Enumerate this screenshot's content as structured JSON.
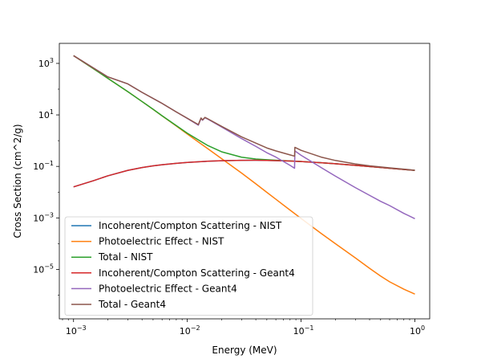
{
  "chart_data": {
    "type": "line",
    "title": "",
    "xlabel": "Energy (MeV)",
    "ylabel": "Cross Section (cm^2/g)",
    "xscale": "log",
    "yscale": "log",
    "xlim": [
      0.00075,
      1.35
    ],
    "ylim": [
      1.2e-07,
      6000
    ],
    "grid": false,
    "legend_position": "lower-left",
    "xticks": [
      0.001,
      0.01,
      0.1,
      1
    ],
    "xtick_labels": [
      {
        "base": "10",
        "exp": "−3"
      },
      {
        "base": "10",
        "exp": "−2"
      },
      {
        "base": "10",
        "exp": "−1"
      },
      {
        "base": "10",
        "exp": "0"
      }
    ],
    "yticks": [
      1e-05,
      0.001,
      0.1,
      10,
      1000
    ],
    "ytick_labels": [
      {
        "base": "10",
        "exp": "−5"
      },
      {
        "base": "10",
        "exp": "−3"
      },
      {
        "base": "10",
        "exp": "−1"
      },
      {
        "base": "10",
        "exp": "1"
      },
      {
        "base": "10",
        "exp": "3"
      }
    ],
    "series": [
      {
        "name": "Incoherent/Compton Scattering - NIST",
        "color": "#1f77b4",
        "x": [
          0.001,
          0.0015,
          0.002,
          0.003,
          0.004,
          0.005,
          0.006,
          0.008,
          0.01,
          0.015,
          0.02,
          0.03,
          0.04,
          0.05,
          0.06,
          0.08,
          0.1,
          0.15,
          0.2,
          0.3,
          0.4,
          0.5,
          0.6,
          0.8,
          1.0
        ],
        "y": [
          0.016,
          0.028,
          0.043,
          0.07,
          0.09,
          0.105,
          0.116,
          0.131,
          0.142,
          0.158,
          0.166,
          0.172,
          0.173,
          0.171,
          0.168,
          0.161,
          0.154,
          0.139,
          0.127,
          0.11,
          0.099,
          0.091,
          0.085,
          0.076,
          0.07
        ]
      },
      {
        "name": "Photoelectric Effect - NIST",
        "color": "#ff7f0e",
        "x": [
          0.001,
          0.0015,
          0.002,
          0.003,
          0.004,
          0.005,
          0.006,
          0.008,
          0.01,
          0.015,
          0.02,
          0.03,
          0.04,
          0.05,
          0.06,
          0.08,
          0.1,
          0.15,
          0.2,
          0.3,
          0.4,
          0.5,
          0.6,
          0.8,
          1.0
        ],
        "y": [
          2000,
          620,
          265,
          80,
          33,
          16.5,
          9.2,
          3.7,
          1.8,
          0.5,
          0.2,
          0.055,
          0.021,
          0.0098,
          0.0053,
          0.002,
          0.00095,
          0.00025,
          0.0001,
          2.8e-05,
          1.1e-05,
          5.5e-06,
          3.3e-06,
          1.7e-06,
          1.1e-06
        ]
      },
      {
        "name": "Total - NIST",
        "color": "#2ca02c",
        "x": [
          0.001,
          0.0015,
          0.002,
          0.003,
          0.004,
          0.005,
          0.006,
          0.008,
          0.01,
          0.015,
          0.02,
          0.03,
          0.04,
          0.05,
          0.06,
          0.08,
          0.1,
          0.15,
          0.2,
          0.3,
          0.4,
          0.5,
          0.6,
          0.8,
          1.0
        ],
        "y": [
          2000,
          620,
          265,
          80,
          33,
          16.6,
          9.3,
          3.85,
          1.95,
          0.66,
          0.37,
          0.227,
          0.194,
          0.181,
          0.173,
          0.163,
          0.155,
          0.139,
          0.127,
          0.11,
          0.099,
          0.091,
          0.085,
          0.076,
          0.07
        ]
      },
      {
        "name": "Incoherent/Compton Scattering - Geant4",
        "color": "#d62728",
        "x": [
          0.001,
          0.0015,
          0.002,
          0.003,
          0.004,
          0.005,
          0.006,
          0.008,
          0.01,
          0.015,
          0.02,
          0.03,
          0.04,
          0.05,
          0.06,
          0.08,
          0.1,
          0.15,
          0.2,
          0.3,
          0.4,
          0.5,
          0.6,
          0.8,
          1.0
        ],
        "y": [
          0.016,
          0.028,
          0.043,
          0.07,
          0.09,
          0.105,
          0.116,
          0.131,
          0.142,
          0.158,
          0.166,
          0.172,
          0.173,
          0.171,
          0.168,
          0.161,
          0.154,
          0.139,
          0.127,
          0.11,
          0.099,
          0.091,
          0.085,
          0.076,
          0.07
        ]
      },
      {
        "name": "Photoelectric Effect - Geant4",
        "color": "#9467bd",
        "x": [
          0.001,
          0.002,
          0.003,
          0.004,
          0.006,
          0.008,
          0.01,
          0.0125,
          0.0132,
          0.0136,
          0.0143,
          0.015,
          0.02,
          0.03,
          0.04,
          0.05,
          0.06,
          0.08,
          0.0876,
          0.0882,
          0.1,
          0.15,
          0.2,
          0.3,
          0.4,
          0.5,
          0.6,
          0.8,
          1.0
        ],
        "y": [
          2000,
          300,
          160,
          75,
          28,
          13,
          7.3,
          4.0,
          7.4,
          6.2,
          7.8,
          7.0,
          3.4,
          1.2,
          0.6,
          0.34,
          0.23,
          0.11,
          0.085,
          0.4,
          0.27,
          0.09,
          0.042,
          0.015,
          0.0075,
          0.0044,
          0.003,
          0.0015,
          0.00093
        ]
      },
      {
        "name": "Total - Geant4",
        "color": "#8c564b",
        "x": [
          0.001,
          0.002,
          0.003,
          0.004,
          0.006,
          0.008,
          0.01,
          0.0125,
          0.0132,
          0.0136,
          0.0143,
          0.015,
          0.02,
          0.03,
          0.04,
          0.05,
          0.06,
          0.08,
          0.0876,
          0.0882,
          0.1,
          0.15,
          0.2,
          0.3,
          0.4,
          0.5,
          0.6,
          0.8,
          1.0
        ],
        "y": [
          2000,
          300,
          160,
          75,
          28,
          13,
          7.4,
          4.2,
          7.6,
          6.4,
          8.0,
          7.2,
          3.6,
          1.4,
          0.8,
          0.52,
          0.4,
          0.28,
          0.25,
          0.55,
          0.42,
          0.23,
          0.17,
          0.125,
          0.105,
          0.095,
          0.088,
          0.078,
          0.071
        ]
      }
    ]
  }
}
